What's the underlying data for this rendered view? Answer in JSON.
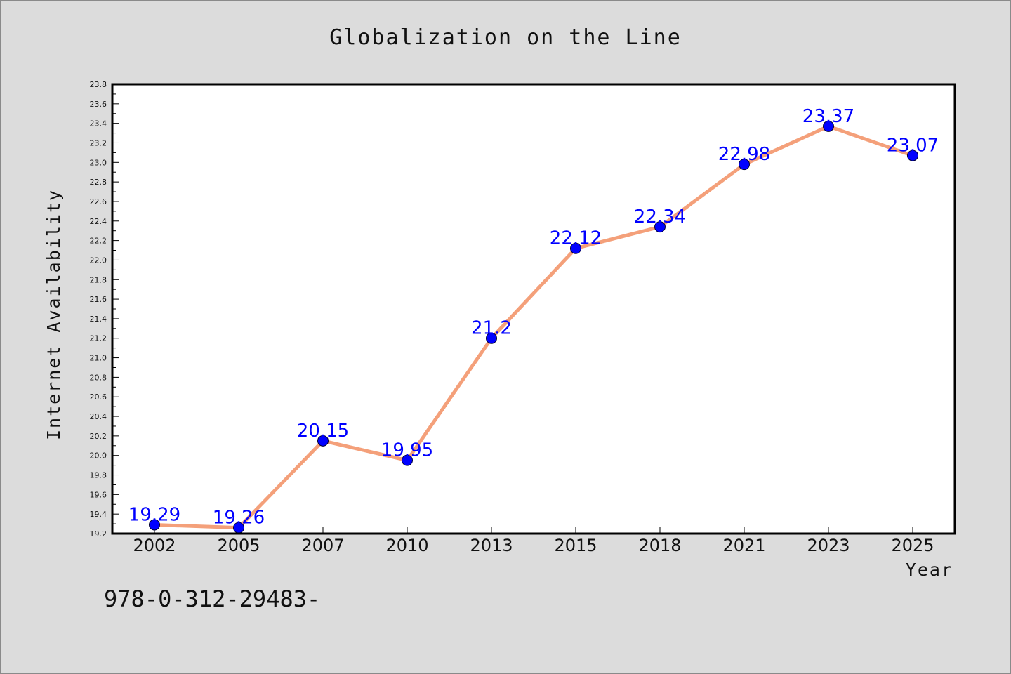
{
  "chart_data": {
    "type": "line",
    "title": "Globalization on the Line",
    "xlabel": "Year",
    "ylabel": "Internet Availability",
    "categories": [
      "2002",
      "2005",
      "2007",
      "2010",
      "2013",
      "2015",
      "2018",
      "2021",
      "2023",
      "2025"
    ],
    "series": [
      {
        "values": [
          19.29,
          19.26,
          20.15,
          19.95,
          21.2,
          22.12,
          22.34,
          22.98,
          23.37,
          23.07
        ],
        "data_labels": [
          "19.29",
          "19.26",
          "20.15",
          "19.95",
          "21.2",
          "22.12",
          "22.34",
          "22.98",
          "23.37",
          "23.07"
        ],
        "line_color": "#f4a07a",
        "marker_color": "#0000ff"
      }
    ],
    "ylim": [
      19.2,
      23.8
    ],
    "yticks": [
      "19.2",
      "19.4",
      "19.6",
      "19.8",
      "20.0",
      "20.2",
      "20.4",
      "20.6",
      "20.8",
      "21.0",
      "21.2",
      "21.4",
      "21.6",
      "21.8",
      "22.0",
      "22.2",
      "22.4",
      "22.6",
      "22.8",
      "23.0",
      "23.2",
      "23.4",
      "23.6",
      "23.8"
    ],
    "grid": false,
    "legend": "none"
  },
  "footer": {
    "text": "978-0-312-29483-"
  },
  "colors": {
    "background": "#dcdcdc",
    "plot_background": "#ffffff",
    "line": "#f4a07a",
    "marker": "#0000ff",
    "data_label": "#0000ff"
  }
}
